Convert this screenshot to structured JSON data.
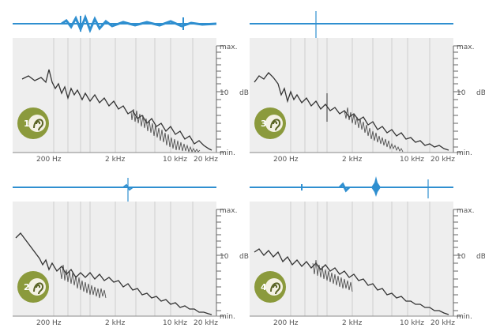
{
  "scale": {
    "max_label": "max.",
    "db_label": "10",
    "db_unit": "dB",
    "min_label": "min."
  },
  "freq_labels": [
    "200 Hz",
    "2 kHz",
    "10 kHz",
    "20 kHz"
  ],
  "panels": [
    {
      "badge": "1",
      "icon": "ear-icon",
      "waveform_peak": "center-broad"
    },
    {
      "badge": "3",
      "icon": "ear-icon",
      "waveform_peak": "none"
    },
    {
      "badge": "2",
      "icon": "ear-icon",
      "waveform_peak": "none"
    },
    {
      "badge": "4",
      "icon": "ear-icon",
      "waveform_peak": "center-spike"
    }
  ],
  "colors": {
    "waveform": "#2f8fd0",
    "badge": "#8b9a3c",
    "spectrum": "#333333",
    "plot_bg": "#eeeeee"
  }
}
